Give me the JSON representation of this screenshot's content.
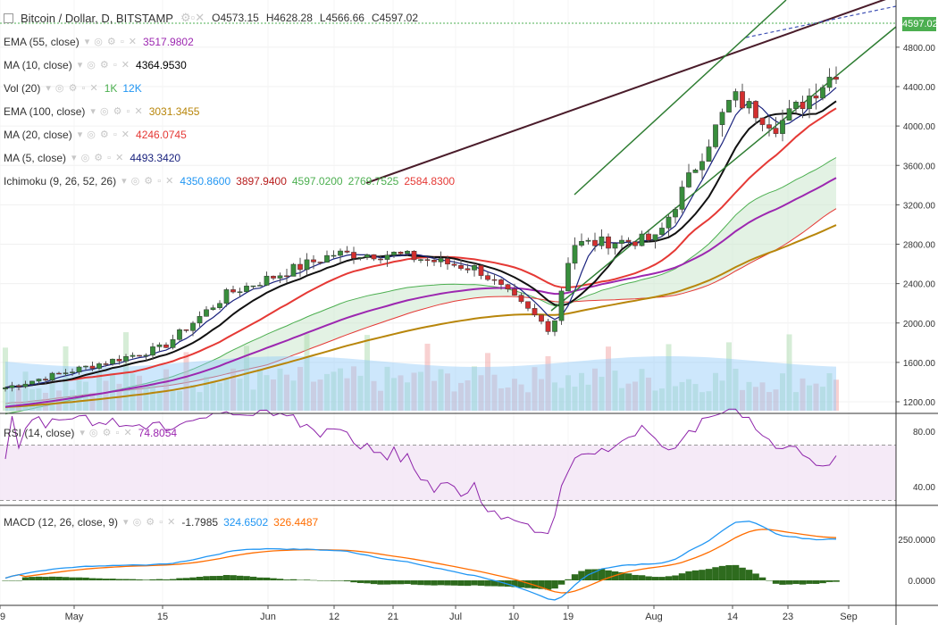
{
  "header": {
    "symbol": "Bitcoin / Dollar, D, BITSTAMP",
    "open": "O4573.15",
    "high": "H4628.28",
    "low": "L4566.66",
    "close": "C4597.02",
    "last_price": "4597.02"
  },
  "indicators": [
    {
      "name": "EMA (55, close)",
      "values": [
        "3517.9802"
      ],
      "colors": [
        "#9c27b0"
      ]
    },
    {
      "name": "MA (10, close)",
      "values": [
        "4364.9530"
      ],
      "colors": [
        "#000000"
      ]
    },
    {
      "name": "Vol (20)",
      "values": [
        "1K",
        "12K"
      ],
      "colors": [
        "#4caf50",
        "#2196f3"
      ]
    },
    {
      "name": "EMA (100, close)",
      "values": [
        "3031.3455"
      ],
      "colors": [
        "#b8860b"
      ]
    },
    {
      "name": "MA (20, close)",
      "values": [
        "4246.0745"
      ],
      "colors": [
        "#e53935"
      ]
    },
    {
      "name": "MA (5, close)",
      "values": [
        "4493.3420"
      ],
      "colors": [
        "#1a237e"
      ]
    },
    {
      "name": "Ichimoku (9, 26, 52, 26)",
      "values": [
        "4350.8600",
        "3897.9400",
        "4597.0200",
        "2769.7525",
        "2584.8300"
      ],
      "colors": [
        "#2196f3",
        "#b71c1c",
        "#4caf50",
        "#4caf50",
        "#e53935"
      ]
    }
  ],
  "rsi": {
    "name": "RSI (14, close)",
    "value": "74.8054",
    "color": "#9c27b0"
  },
  "macd": {
    "name": "MACD (12, 26, close, 9)",
    "values": [
      "-1.7985",
      "324.6502",
      "326.4487"
    ],
    "colors": [
      "#333333",
      "#2196f3",
      "#ff6d00"
    ]
  },
  "chart_data": {
    "type": "candlestick",
    "price_axis": {
      "ticks": [
        "4800.00",
        "4400.00",
        "4000.00",
        "3600.00",
        "3200.00",
        "2800.00",
        "2400.00",
        "2000.00",
        "1600.00",
        "1200.00"
      ]
    },
    "rsi_axis": {
      "ticks": [
        "80.00",
        "40.00"
      ],
      "bands": [
        70,
        30
      ]
    },
    "macd_axis": {
      "ticks": [
        "250.0000",
        "0.0000"
      ]
    },
    "x_ticks": [
      "9",
      "May",
      "15",
      "Jun",
      "12",
      "21",
      "Jul",
      "10",
      "19",
      "Aug",
      "14",
      "23",
      "Sep"
    ],
    "key_closes": [
      {
        "date": "Apr 30",
        "close": 1330
      },
      {
        "date": "May 15",
        "close": 1750
      },
      {
        "date": "May 25",
        "close": 2300
      },
      {
        "date": "Jun 12",
        "close": 2700
      },
      {
        "date": "Jun 21",
        "close": 2700
      },
      {
        "date": "Jul 3",
        "close": 2550
      },
      {
        "date": "Jul 16",
        "close": 1920
      },
      {
        "date": "Jul 20",
        "close": 2800
      },
      {
        "date": "Aug 5",
        "close": 2850
      },
      {
        "date": "Aug 14",
        "close": 4300
      },
      {
        "date": "Aug 22",
        "close": 4000
      },
      {
        "date": "Aug 31",
        "close": 4597
      }
    ]
  }
}
